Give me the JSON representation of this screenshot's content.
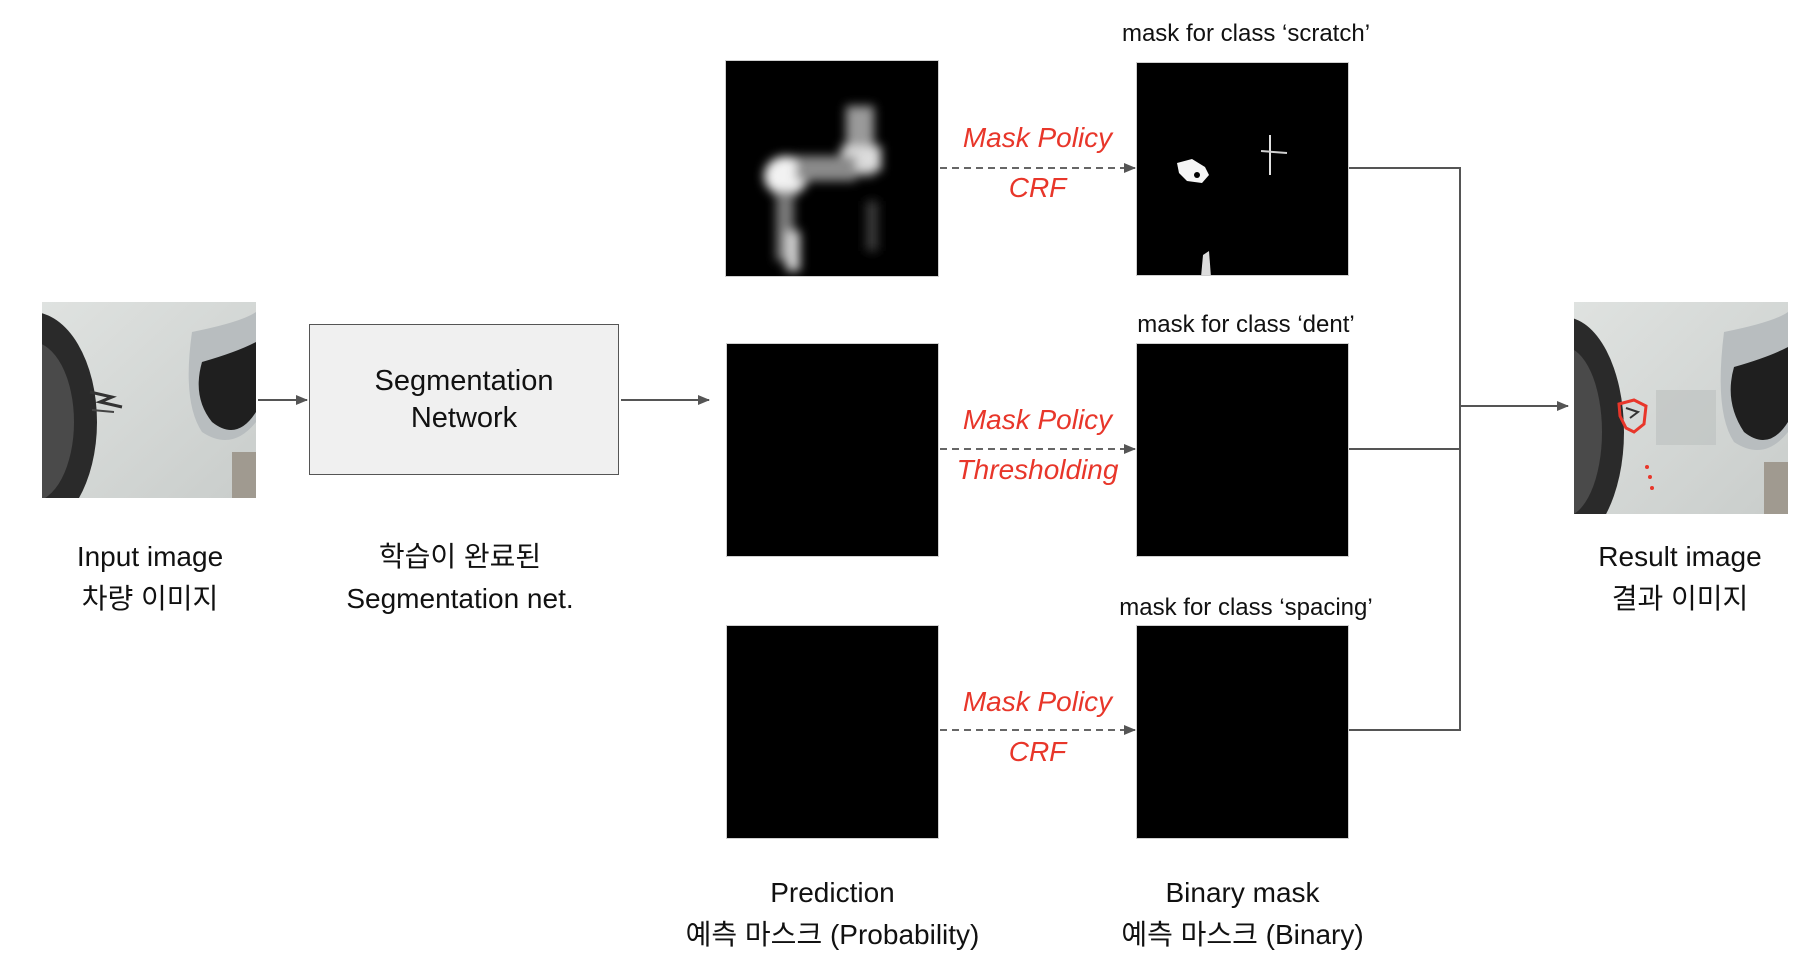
{
  "input": {
    "caption_line1": "Input image",
    "caption_line2": "차량 이미지"
  },
  "network": {
    "box_line1": "Segmentation",
    "box_line2": "Network",
    "caption_line1": "학습이 완료된",
    "caption_line2": "Segmentation net."
  },
  "rows": [
    {
      "mask_title": "mask for class ‘scratch’",
      "policy_line1": "Mask Policy",
      "policy_line2": "CRF"
    },
    {
      "mask_title": "mask for class ‘dent’",
      "policy_line1": "Mask Policy",
      "policy_line2": "Thresholding"
    },
    {
      "mask_title": "mask for class ‘spacing’",
      "policy_line1": "Mask Policy",
      "policy_line2": "CRF"
    }
  ],
  "prediction": {
    "caption_line1": "Prediction",
    "caption_line2": "예측 마스크 (Probability)"
  },
  "binary": {
    "caption_line1": "Binary mask",
    "caption_line2": "예측 마스크 (Binary)"
  },
  "result": {
    "caption_line1": "Result image",
    "caption_line2": "결과 이미지"
  },
  "colors": {
    "policy_text": "#e8362a",
    "arrow": "#555555",
    "network_fill": "#f0f0f0",
    "contour": "#e8362a"
  }
}
